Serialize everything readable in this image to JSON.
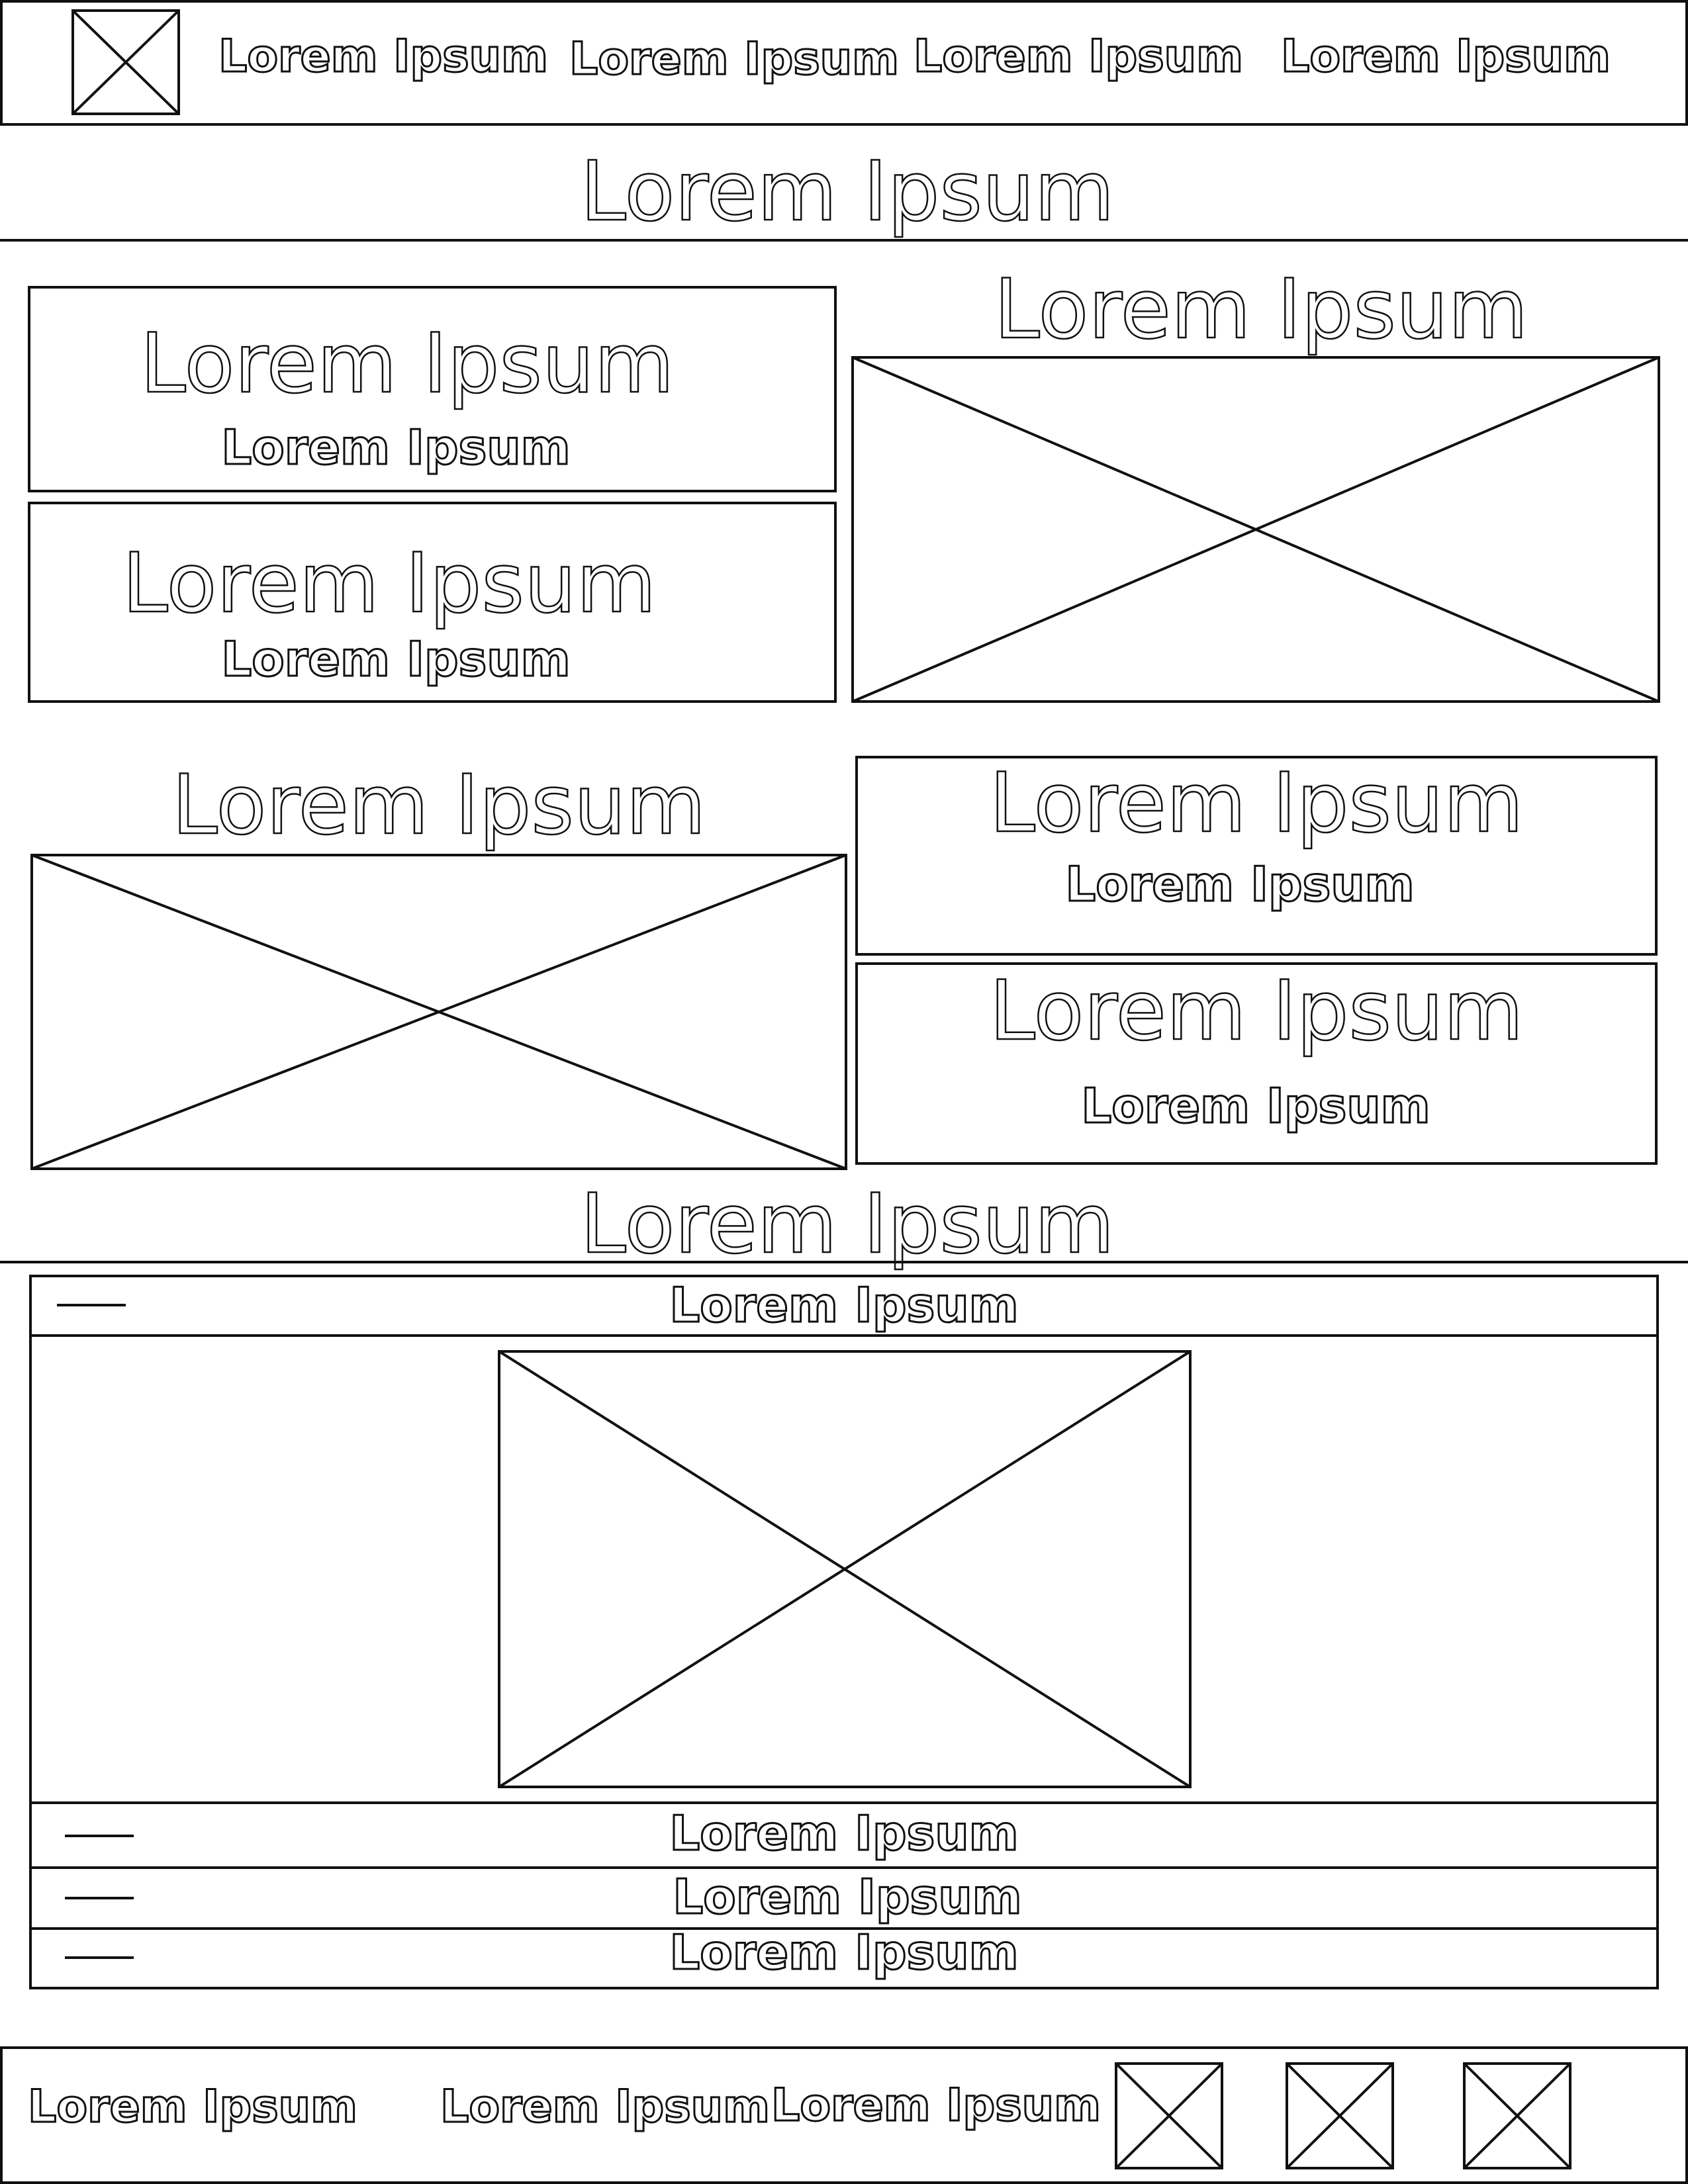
{
  "header": {
    "logo_icon": "image-placeholder-icon",
    "nav": [
      "Lorem Ipsum",
      "Lorem Ipsum",
      "Lorem Ipsum",
      "Lorem Ipsum"
    ]
  },
  "section1": {
    "title": "Lorem Ipsum",
    "card1": {
      "title": "Lorem Ipsum",
      "subtitle": "Lorem Ipsum"
    },
    "card2": {
      "title": "Lorem Ipsum",
      "subtitle": "Lorem Ipsum"
    },
    "image_title": "Lorem Ipsum"
  },
  "section2": {
    "image_title": "Lorem Ipsum",
    "card1": {
      "title": "Lorem Ipsum",
      "subtitle": "Lorem Ipsum"
    },
    "card2": {
      "title": "Lorem Ipsum",
      "subtitle": "Lorem Ipsum"
    }
  },
  "section3": {
    "title": "Lorem Ipsum",
    "accordion": [
      {
        "label": "Lorem Ipsum"
      },
      {
        "label": "Lorem Ipsum"
      },
      {
        "label": "Lorem Ipsum"
      },
      {
        "label": "Lorem Ipsum"
      }
    ]
  },
  "footer": {
    "links": [
      "Lorem Ipsum",
      "Lorem Ipsum",
      "Lorem Ipsum"
    ],
    "icons": [
      "image-placeholder-icon",
      "image-placeholder-icon",
      "image-placeholder-icon"
    ]
  }
}
